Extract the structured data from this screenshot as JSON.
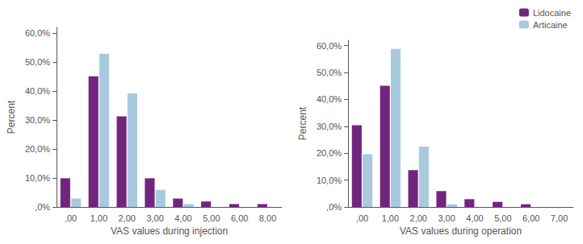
{
  "chart_data": [
    {
      "type": "bar",
      "xlabel": "VAS values during injection",
      "ylabel": "Percent",
      "categories": [
        ",00",
        "1,00",
        "2,00",
        "3,00",
        "4,00",
        "5,00",
        "6,00",
        "8,00"
      ],
      "series": [
        {
          "name": "Lidocaine",
          "color": "#72257E",
          "values": [
            9.9,
            45.1,
            31.3,
            9.9,
            2.9,
            1.9,
            1.0,
            1.0
          ]
        },
        {
          "name": "Articaine",
          "color": "#A8CADF",
          "values": [
            2.9,
            52.9,
            39.2,
            5.9,
            1.0,
            0.0,
            0.0,
            0.0
          ]
        }
      ],
      "ylim": [
        0,
        62
      ],
      "yticks": [
        {
          "value": 0,
          "label": ",0%"
        },
        {
          "value": 10,
          "label": "10,0%"
        },
        {
          "value": 20,
          "label": "20,0%"
        },
        {
          "value": 30,
          "label": "30,0%"
        },
        {
          "value": 40,
          "label": "40,0%"
        },
        {
          "value": 50,
          "label": "50,0%"
        },
        {
          "value": 60,
          "label": "60,0%"
        }
      ],
      "grid": false
    },
    {
      "type": "bar",
      "xlabel": "VAS values during operation",
      "ylabel": "Percent",
      "categories": [
        ",00",
        "1,00",
        "2,00",
        "3,00",
        "4,00",
        "5,00",
        "6,00",
        "7,00"
      ],
      "series": [
        {
          "name": "Lidocaine",
          "color": "#72257E",
          "values": [
            30.4,
            45.1,
            13.7,
            5.9,
            2.9,
            1.9,
            1.0,
            0.0
          ]
        },
        {
          "name": "Articaine",
          "color": "#A8CADF",
          "values": [
            19.6,
            58.8,
            22.5,
            1.0,
            0.0,
            0.0,
            0.0,
            0.0
          ]
        }
      ],
      "ylim": [
        0,
        62
      ],
      "yticks": [
        {
          "value": 0,
          "label": ",0%"
        },
        {
          "value": 10,
          "label": "10,0%"
        },
        {
          "value": 20,
          "label": "20,0%"
        },
        {
          "value": 30,
          "label": "30,0%"
        },
        {
          "value": 40,
          "label": "40,0%"
        },
        {
          "value": 50,
          "label": "50,0%"
        },
        {
          "value": 60,
          "label": "60,0%"
        }
      ],
      "grid": false,
      "legend": "upper right"
    }
  ]
}
